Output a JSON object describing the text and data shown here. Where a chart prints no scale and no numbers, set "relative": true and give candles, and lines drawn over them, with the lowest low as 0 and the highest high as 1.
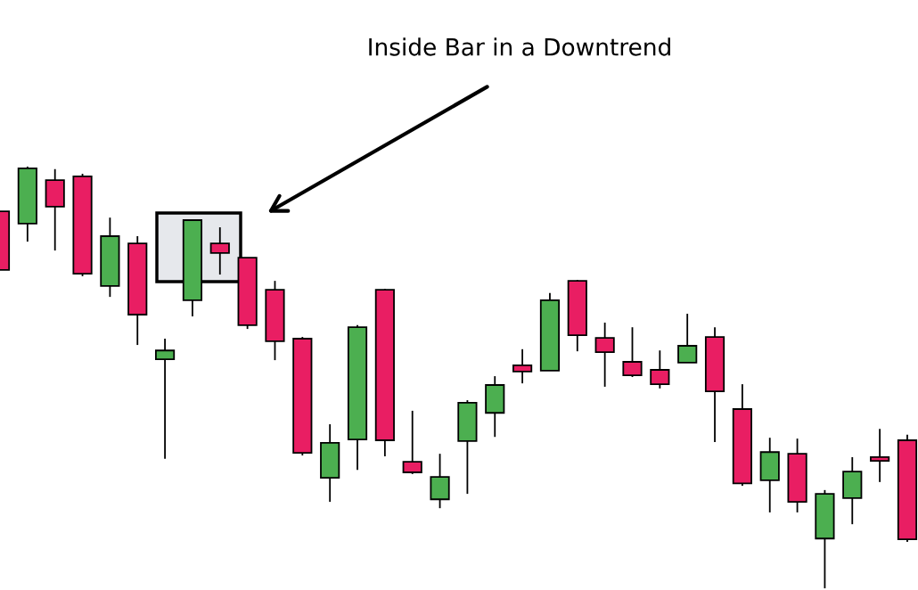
{
  "chart_data": {
    "type": "candlestick",
    "relative": true,
    "annotations": [
      "Inside Bar in a Downtrend"
    ],
    "categories": [
      null,
      null,
      null,
      null,
      null,
      null,
      null,
      null,
      null,
      null,
      null,
      null,
      null,
      null,
      null,
      null,
      null,
      null,
      null,
      null,
      null,
      null,
      null,
      null,
      null,
      null,
      null,
      null,
      null,
      null,
      null,
      null,
      null,
      null
    ],
    "ohlc": [
      [
        0.894,
        0.894,
        0.755,
        0.755
      ],
      [
        0.865,
        1.0,
        0.822,
        0.996
      ],
      [
        0.968,
        0.994,
        0.801,
        0.905
      ],
      [
        0.977,
        0.983,
        0.74,
        0.746
      ],
      [
        0.717,
        0.879,
        0.691,
        0.835
      ],
      [
        0.818,
        0.835,
        0.577,
        0.649
      ],
      [
        0.543,
        0.592,
        0.307,
        0.564
      ],
      [
        0.683,
        0.875,
        0.645,
        0.873
      ],
      [
        0.818,
        0.856,
        0.744,
        0.795
      ],
      [
        0.784,
        0.784,
        0.615,
        0.624
      ],
      [
        0.708,
        0.729,
        0.541,
        0.586
      ],
      [
        0.592,
        0.596,
        0.315,
        0.321
      ],
      [
        0.262,
        0.389,
        0.205,
        0.345
      ],
      [
        0.353,
        0.624,
        0.281,
        0.619
      ],
      [
        0.708,
        0.71,
        0.313,
        0.351
      ],
      [
        0.3,
        0.421,
        0.271,
        0.275
      ],
      [
        0.211,
        0.319,
        0.19,
        0.264
      ],
      [
        0.349,
        0.446,
        0.224,
        0.44
      ],
      [
        0.416,
        0.503,
        0.359,
        0.482
      ],
      [
        0.529,
        0.567,
        0.486,
        0.514
      ],
      [
        0.516,
        0.7,
        0.516,
        0.683
      ],
      [
        0.729,
        0.731,
        0.562,
        0.6
      ],
      [
        0.594,
        0.63,
        0.478,
        0.56
      ],
      [
        0.537,
        0.619,
        0.501,
        0.505
      ],
      [
        0.518,
        0.564,
        0.474,
        0.484
      ],
      [
        0.535,
        0.651,
        0.535,
        0.575
      ],
      [
        0.596,
        0.619,
        0.347,
        0.467
      ],
      [
        0.425,
        0.484,
        0.243,
        0.249
      ],
      [
        0.256,
        0.357,
        0.18,
        0.323
      ],
      [
        0.319,
        0.355,
        0.18,
        0.205
      ],
      [
        0.118,
        0.233,
        0.0,
        0.224
      ],
      [
        0.214,
        0.311,
        0.152,
        0.277
      ],
      [
        0.311,
        0.378,
        0.252,
        0.302
      ],
      [
        0.351,
        0.364,
        0.11,
        0.116
      ]
    ],
    "colors": [
      "#e91e63",
      "#4caf50",
      "#e91e63",
      "#e91e63",
      "#4caf50",
      "#e91e63",
      "#4caf50",
      "#4caf50",
      "#e91e63",
      "#e91e63",
      "#e91e63",
      "#e91e63",
      "#4caf50",
      "#4caf50",
      "#e91e63",
      "#e91e63",
      "#4caf50",
      "#4caf50",
      "#4caf50",
      "#e91e63",
      "#4caf50",
      "#e91e63",
      "#e91e63",
      "#e91e63",
      "#e91e63",
      "#4caf50",
      "#e91e63",
      "#e91e63",
      "#4caf50",
      "#e91e63",
      "#4caf50",
      "#4caf50",
      "#e91e63",
      "#e91e63"
    ]
  }
}
